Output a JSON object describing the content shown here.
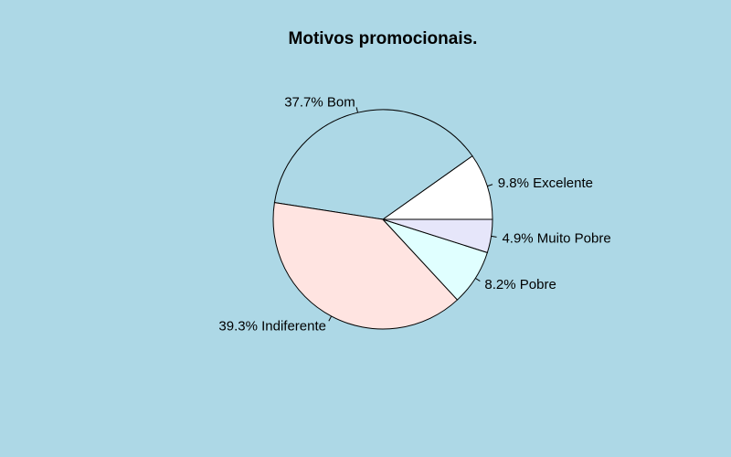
{
  "chart_data": {
    "type": "pie",
    "title": "Motivos promocionais.",
    "start_angle_deg": 0,
    "direction": "counterclockwise",
    "background_color": "#ADD8E6",
    "slices": [
      {
        "label": "9.8% Excelente",
        "value": 9.8,
        "color": "#FFFFFF"
      },
      {
        "label": "37.7% Bom",
        "value": 37.7,
        "color": "#ADD8E6"
      },
      {
        "label": "39.3% Indiferente",
        "value": 39.3,
        "color": "#FFE4E1"
      },
      {
        "label": "8.2% Pobre",
        "value": 8.2,
        "color": "#E0FFFF"
      },
      {
        "label": "4.9% Muito Pobre",
        "value": 4.9,
        "color": "#E6E6FA"
      }
    ]
  }
}
